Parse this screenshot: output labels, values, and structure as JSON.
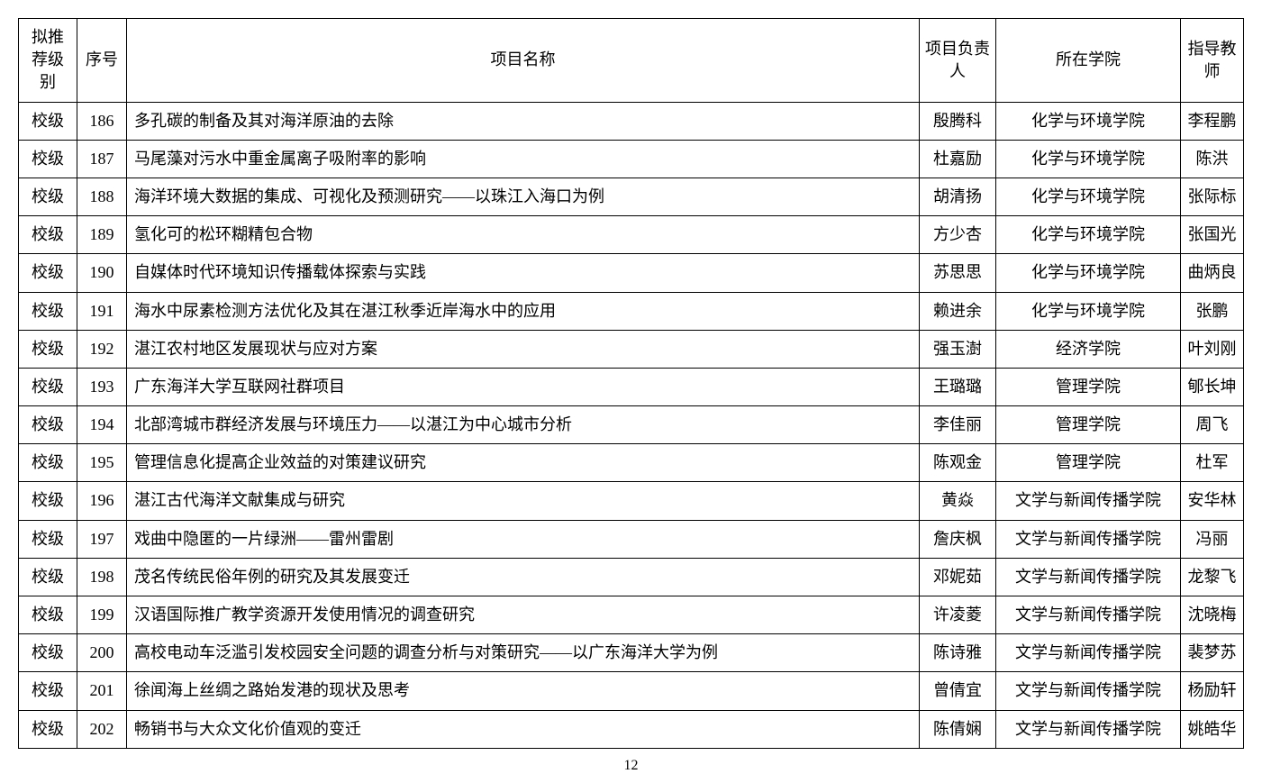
{
  "pageNumber": "12",
  "table": {
    "columns": [
      "拟推荐级别",
      "序号",
      "项目名称",
      "项目负责人",
      "所在学院",
      "指导教师"
    ],
    "rows": [
      [
        "校级",
        "186",
        "多孔碳的制备及其对海洋原油的去除",
        "殷腾科",
        "化学与环境学院",
        "李程鹏"
      ],
      [
        "校级",
        "187",
        "马尾藻对污水中重金属离子吸附率的影响",
        "杜嘉励",
        "化学与环境学院",
        "陈洪"
      ],
      [
        "校级",
        "188",
        "海洋环境大数据的集成、可视化及预测研究——以珠江入海口为例",
        "胡清扬",
        "化学与环境学院",
        "张际标"
      ],
      [
        "校级",
        "189",
        "氢化可的松环糊精包合物",
        "方少杏",
        "化学与环境学院",
        "张国光"
      ],
      [
        "校级",
        "190",
        "自媒体时代环境知识传播载体探索与实践",
        "苏思思",
        "化学与环境学院",
        "曲炳良"
      ],
      [
        "校级",
        "191",
        "海水中尿素检测方法优化及其在湛江秋季近岸海水中的应用",
        "赖进余",
        "化学与环境学院",
        "张鹏"
      ],
      [
        "校级",
        "192",
        "湛江农村地区发展现状与应对方案",
        "强玉澍",
        "经济学院",
        "叶刘刚"
      ],
      [
        "校级",
        "193",
        "广东海洋大学互联网社群项目",
        "王璐璐",
        "管理学院",
        "郇长坤"
      ],
      [
        "校级",
        "194",
        "北部湾城市群经济发展与环境压力——以湛江为中心城市分析",
        "李佳丽",
        "管理学院",
        "周飞"
      ],
      [
        "校级",
        "195",
        "管理信息化提高企业效益的对策建议研究",
        "陈观金",
        "管理学院",
        "杜军"
      ],
      [
        "校级",
        "196",
        "湛江古代海洋文献集成与研究",
        "黄焱",
        "文学与新闻传播学院",
        "安华林"
      ],
      [
        "校级",
        "197",
        "戏曲中隐匿的一片绿洲——雷州雷剧",
        "詹庆枫",
        "文学与新闻传播学院",
        "冯丽"
      ],
      [
        "校级",
        "198",
        "茂名传统民俗年例的研究及其发展变迁",
        "邓妮茹",
        "文学与新闻传播学院",
        "龙黎飞"
      ],
      [
        "校级",
        "199",
        "汉语国际推广教学资源开发使用情况的调查研究",
        "许凌菱",
        "文学与新闻传播学院",
        "沈晓梅"
      ],
      [
        "校级",
        "200",
        "高校电动车泛滥引发校园安全问题的调查分析与对策研究——以广东海洋大学为例",
        "陈诗雅",
        "文学与新闻传播学院",
        "裴梦苏"
      ],
      [
        "校级",
        "201",
        "徐闻海上丝绸之路始发港的现状及思考",
        "曾倩宜",
        "文学与新闻传播学院",
        "杨励轩"
      ],
      [
        "校级",
        "202",
        "畅销书与大众文化价值观的变迁",
        "陈倩娴",
        "文学与新闻传播学院",
        "姚皓华"
      ]
    ]
  }
}
